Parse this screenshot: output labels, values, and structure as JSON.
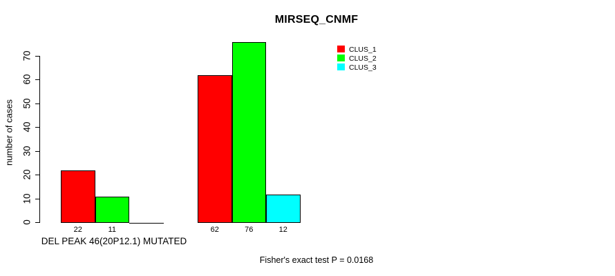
{
  "title": "MIRSEQ_CNMF",
  "footnote": "Fisher's exact test P = 0.0168",
  "colors": {
    "background": "#ffffff",
    "axis": "#000000",
    "clus_1": "#ff0000",
    "clus_2": "#00ff00",
    "clus_3": "#00ffff"
  },
  "chart_data": {
    "type": "bar",
    "title": "MIRSEQ_CNMF",
    "xlabel": "DEL PEAK 46(20P12.1) MUTATED",
    "ylabel": "number of cases",
    "groups": [
      {
        "label": "DEL PEAK 46(20P12.1) MUTATED"
      },
      {
        "label": ""
      }
    ],
    "series": [
      {
        "name": "CLUS_1",
        "color": "#ff0000",
        "values": [
          22,
          62
        ]
      },
      {
        "name": "CLUS_2",
        "color": "#00ff00",
        "values": [
          11,
          76
        ]
      },
      {
        "name": "CLUS_3",
        "color": "#00ffff",
        "values": [
          0,
          12
        ]
      }
    ],
    "bar_value_labels": [
      [
        "22",
        "11",
        ""
      ],
      [
        "62",
        "76",
        "12"
      ]
    ],
    "yticks": [
      0,
      10,
      20,
      30,
      40,
      50,
      60,
      70
    ],
    "ylim": [
      0,
      76
    ],
    "grid": false,
    "legend_position": "upper-right",
    "annotation": "Fisher's exact test P = 0.0168"
  }
}
